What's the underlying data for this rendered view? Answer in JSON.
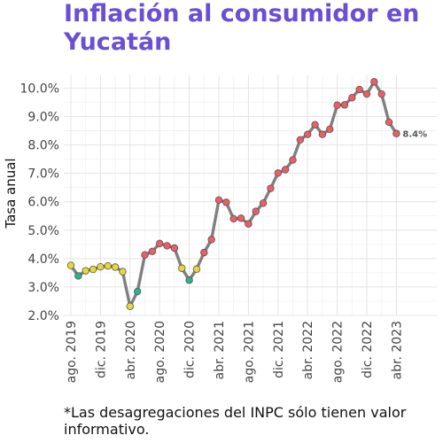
{
  "chart_data": {
    "type": "line",
    "title": "Inflación al consumidor en Yucatán",
    "ylabel": "Tasa anual",
    "xlabel": "",
    "ylim": [
      2.0,
      10.45
    ],
    "y_ticks": [
      2,
      3,
      4,
      5,
      6,
      7,
      8,
      9,
      10
    ],
    "y_tick_labels": [
      "2.0%",
      "3.0%",
      "4.0%",
      "5.0%",
      "6.0%",
      "7.0%",
      "8.0%",
      "9.0%",
      "10.0%"
    ],
    "x_tick_labels": [
      "ago. 2019",
      "dic. 2019",
      "abr. 2020",
      "ago. 2020",
      "dic. 2020",
      "abr. 2021",
      "ago. 2021",
      "dic. 2021",
      "abr. 2022",
      "ago. 2022",
      "dic. 2022",
      "abr. 2023"
    ],
    "x_tick_index": [
      0,
      4,
      8,
      12,
      16,
      20,
      24,
      28,
      32,
      36,
      40,
      44
    ],
    "months": [
      "ago. 2019",
      "sep. 2019",
      "oct. 2019",
      "nov. 2019",
      "dic. 2019",
      "ene. 2020",
      "feb. 2020",
      "mar. 2020",
      "abr. 2020",
      "may. 2020",
      "jun. 2020",
      "jul. 2020",
      "ago. 2020",
      "sep. 2020",
      "oct. 2020",
      "nov. 2020",
      "dic. 2020",
      "ene. 2021",
      "feb. 2021",
      "mar. 2021",
      "abr. 2021",
      "may. 2021",
      "jun. 2021",
      "jul. 2021",
      "ago. 2021",
      "sep. 2021",
      "oct. 2021",
      "nov. 2021",
      "dic. 2021",
      "ene. 2022",
      "feb. 2022",
      "mar. 2022",
      "abr. 2022",
      "may. 2022",
      "jun. 2022",
      "jul. 2022",
      "ago. 2022",
      "sep. 2022",
      "oct. 2022",
      "nov. 2022",
      "dic. 2022",
      "ene. 2023",
      "feb. 2023",
      "mar. 2023",
      "abr. 2023"
    ],
    "values": [
      3.76,
      3.39,
      3.57,
      3.62,
      3.71,
      3.74,
      3.7,
      3.54,
      2.32,
      2.84,
      4.13,
      4.25,
      4.53,
      4.45,
      4.37,
      3.66,
      3.24,
      3.63,
      4.21,
      4.67,
      6.06,
      5.98,
      5.4,
      5.42,
      5.22,
      5.66,
      5.95,
      6.47,
      7.01,
      7.13,
      7.47,
      8.18,
      8.37,
      8.71,
      8.37,
      8.55,
      9.4,
      9.41,
      9.66,
      9.95,
      9.79,
      10.22,
      9.79,
      8.8,
      8.4
    ],
    "point_colors": [
      "#e6d83c",
      "#2bb38a",
      "#e6d83c",
      "#e6d83c",
      "#e6d83c",
      "#e6d83c",
      "#e6d83c",
      "#e6d83c",
      "#e6d83c",
      "#2bb38a",
      "#ee5c66",
      "#ee5c66",
      "#ee5c66",
      "#ee5c66",
      "#ee5c66",
      "#e6d83c",
      "#2bb38a",
      "#e6d83c",
      "#ee5c66",
      "#ee5c66",
      "#ee5c66",
      "#ee5c66",
      "#ee5c66",
      "#ee5c66",
      "#ee5c66",
      "#ee5c66",
      "#ee5c66",
      "#ee5c66",
      "#ee5c66",
      "#ee5c66",
      "#ee5c66",
      "#ee5c66",
      "#ee5c66",
      "#ee5c66",
      "#ee5c66",
      "#ee5c66",
      "#ee5c66",
      "#ee5c66",
      "#ee5c66",
      "#ee5c66",
      "#ee5c66",
      "#ee5c66",
      "#ee5c66",
      "#ee5c66",
      "#ee5c66"
    ],
    "line_color": "#808080",
    "end_label": "8.4%",
    "grid": true
  },
  "caption": "*Las desagregaciones del INPC sólo tienen valor informativo."
}
